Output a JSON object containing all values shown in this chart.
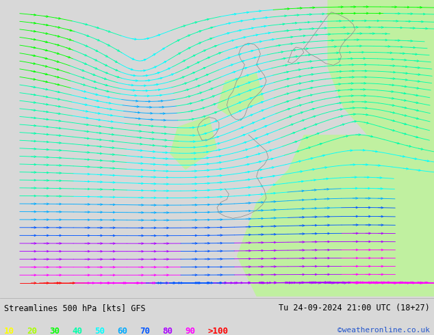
{
  "title_left": "Streamlines 500 hPa [kts] GFS",
  "title_right": "Tu 24-09-2024 21:00 UTC (18+27)",
  "credit": "©weatheronline.co.uk",
  "legend_values": [
    "10",
    "20",
    "30",
    "40",
    "50",
    "60",
    "70",
    "80",
    "90",
    ">100"
  ],
  "legend_colors": [
    "#ffff00",
    "#aaff00",
    "#00ff00",
    "#00ffaa",
    "#00ffff",
    "#00aaff",
    "#0055ff",
    "#aa00ff",
    "#ff00ff",
    "#ff0000"
  ],
  "bg_color": "#d8d8d8",
  "map_bg": "#d8d8d8",
  "green_area_color": "#c0f0a0",
  "fig_width": 6.34,
  "fig_height": 4.9,
  "dpi": 100,
  "coast_color": "#888888",
  "bottom_bg": "#ffffff"
}
